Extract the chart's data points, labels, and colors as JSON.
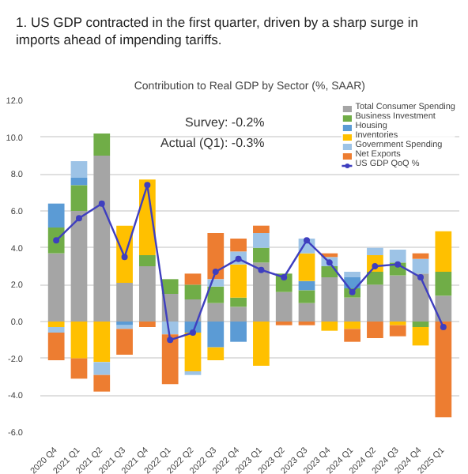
{
  "chart_data": {
    "type": "bar",
    "stacked": true,
    "title": "1. US GDP contracted in the first quarter, driven by a sharp surge in imports ahead of impending tariffs.",
    "subtitle": "Contribution to Real GDP by Sector (%, SAAR)",
    "annotations": [
      "Survey:  -0.2%",
      "Actual (Q1):  -0.3%"
    ],
    "categories": [
      "2020 Q4",
      "2021 Q1",
      "2021 Q2",
      "2021 Q3",
      "2021 Q4",
      "2022 Q1",
      "2022 Q2",
      "2022 Q3",
      "2022 Q4",
      "2023 Q1",
      "2023 Q2",
      "2023 Q3",
      "2023 Q4",
      "2024 Q1",
      "2024 Q2",
      "2024 Q3",
      "2024 Q4",
      "2025 Q1"
    ],
    "series": [
      {
        "name": "Total Consumer Spending",
        "color": "#a5a5a5",
        "values": [
          3.7,
          6.0,
          9.0,
          2.1,
          3.0,
          1.5,
          1.2,
          1.0,
          0.8,
          3.2,
          1.6,
          1.0,
          2.4,
          1.3,
          2.0,
          2.5,
          2.6,
          1.4
        ]
      },
      {
        "name": "Business Investment",
        "color": "#70ad47",
        "values": [
          1.4,
          1.4,
          1.2,
          null,
          0.6,
          0.8,
          0.8,
          0.9,
          0.5,
          0.8,
          1.0,
          0.7,
          0.6,
          0.5,
          0.7,
          0.7,
          -0.3,
          1.3
        ]
      },
      {
        "name": "Housing",
        "color": "#5b9bd5",
        "values": [
          1.3,
          0.4,
          null,
          -0.2,
          null,
          null,
          -0.6,
          -1.4,
          -1.1,
          null,
          null,
          0.5,
          null,
          0.6,
          null,
          null,
          null,
          null
        ]
      },
      {
        "name": "Inventories",
        "color": "#ffc000",
        "values": [
          -0.3,
          -2.0,
          -2.2,
          3.1,
          4.1,
          null,
          -2.1,
          -0.7,
          1.8,
          -2.4,
          null,
          1.5,
          -0.5,
          -0.4,
          0.9,
          -0.2,
          -1.0,
          2.2
        ]
      },
      {
        "name": "Government Spending",
        "color": "#9dc3e6",
        "values": [
          -0.3,
          0.9,
          -0.7,
          -0.2,
          null,
          -0.7,
          -0.2,
          0.4,
          0.7,
          0.8,
          null,
          0.8,
          0.5,
          0.3,
          0.4,
          0.7,
          0.8,
          null
        ]
      },
      {
        "name": "Net Exports",
        "color": "#ed7d31",
        "values": [
          -1.5,
          -1.1,
          -0.9,
          -1.4,
          -0.3,
          -2.7,
          0.6,
          2.5,
          0.7,
          0.4,
          -0.2,
          -0.2,
          0.2,
          -0.7,
          -0.9,
          -0.6,
          0.3,
          -5.2
        ]
      },
      {
        "name": "US GDP QoQ %",
        "type": "line",
        "marker": "circle",
        "color": "#3f3fbf",
        "values": [
          4.4,
          5.6,
          6.4,
          3.5,
          7.4,
          -1.0,
          -0.6,
          2.7,
          3.4,
          2.8,
          2.4,
          4.4,
          3.2,
          1.6,
          3.0,
          3.1,
          2.4,
          -0.3
        ]
      }
    ],
    "ylim": [
      -6,
      12
    ],
    "yticks": [
      {
        "value": -6,
        "label": "-6.0"
      },
      {
        "value": -4,
        "label": "-4.0"
      },
      {
        "value": -2,
        "label": "-2.0"
      },
      {
        "value": 0,
        "label": "0.0"
      },
      {
        "value": 2,
        "label": "2.0"
      },
      {
        "value": 4,
        "label": "4.0"
      },
      {
        "value": 6,
        "label": "6.0"
      },
      {
        "value": 8,
        "label": "8.0"
      },
      {
        "value": 10,
        "label": "10.0"
      },
      {
        "value": 12,
        "label": "12.0"
      }
    ],
    "grid": "y",
    "legend": "top right"
  }
}
